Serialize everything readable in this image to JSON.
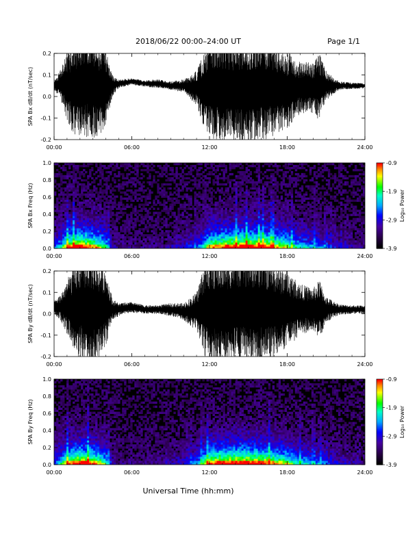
{
  "header": {
    "title": "2018/06/22  00:00–24:00 UT",
    "page": "Page 1/1"
  },
  "footer": {
    "xlabel": "Universal Time (hh:mm)"
  },
  "colorbar": {
    "ticks": [
      "-0.9",
      "-1.9",
      "-2.9",
      "-3.9"
    ],
    "label": "Log₁₀ Power",
    "range": [
      -3.9,
      -0.9
    ]
  },
  "chart_data": [
    {
      "type": "line",
      "name": "bx",
      "ylabel": "SPA Bx dB/dt (nT/sec)",
      "xlim": [
        0,
        24
      ],
      "ylim": [
        -0.2,
        0.2
      ],
      "xticks": [
        "00:00",
        "06:00",
        "12:00",
        "18:00",
        "24:00"
      ],
      "yticks": [
        "0.2",
        "0.1",
        "0.0",
        "-0.1",
        "-0.2"
      ],
      "series": [
        {
          "x": [
            0,
            0.5,
            1,
            1.5,
            2,
            2.5,
            3,
            3.5,
            4,
            4.5,
            5,
            6,
            7,
            8,
            9,
            10,
            11,
            11.5,
            12,
            13,
            14,
            15,
            16,
            17,
            18,
            19,
            20,
            20.5,
            21,
            22,
            23,
            24
          ],
          "y": [
            0.05,
            0.06,
            0.05,
            0.04,
            0.05,
            0.06,
            0.05,
            0.04,
            0.05,
            0.05,
            0.06,
            0.07,
            0.06,
            0.06,
            0.05,
            0.05,
            0.04,
            0.03,
            0.04,
            0.04,
            0.03,
            0.03,
            0.04,
            0.04,
            0.03,
            0.04,
            0.04,
            0.04,
            0.05,
            0.05,
            0.05,
            0.05
          ],
          "amplitude": [
            0.02,
            0.07,
            0.16,
            0.22,
            0.25,
            0.26,
            0.25,
            0.22,
            0.18,
            0.05,
            0.02,
            0.015,
            0.015,
            0.02,
            0.02,
            0.03,
            0.08,
            0.16,
            0.24,
            0.25,
            0.25,
            0.26,
            0.25,
            0.22,
            0.18,
            0.12,
            0.12,
            0.16,
            0.07,
            0.02,
            0.015,
            0.012
          ]
        }
      ]
    },
    {
      "type": "heatmap",
      "name": "bx-freq",
      "ylabel": "SPA Bx Freq (Hz)",
      "xlim": [
        0,
        24
      ],
      "ylim": [
        0.0,
        1.0
      ],
      "xticks": [
        "00:00",
        "06:00",
        "12:00",
        "18:00",
        "24:00"
      ],
      "yticks": [
        "1.0",
        "0.8",
        "0.6",
        "0.4",
        "0.2",
        "0.0"
      ],
      "activity": [
        0.3,
        0.5,
        0.8,
        0.95,
        1,
        0.95,
        0.85,
        0.75,
        0.6,
        0.15,
        0.1,
        0.08,
        0.08,
        0.1,
        0.15,
        0.2,
        0.3,
        0.5,
        0.8,
        0.9,
        0.95,
        1,
        0.95,
        0.85,
        0.7,
        0.5,
        0.4,
        0.4,
        0.3,
        0.2,
        0.15,
        0.1
      ],
      "activity_x": [
        0,
        0.5,
        1,
        1.5,
        2,
        2.5,
        3,
        3.5,
        4,
        4.5,
        5,
        6,
        7,
        8,
        9,
        10,
        11,
        11.5,
        12,
        13,
        14,
        15,
        16,
        17,
        18,
        19,
        20,
        20.5,
        21,
        22,
        23,
        24
      ]
    },
    {
      "type": "line",
      "name": "by",
      "ylabel": "SPA By dB/dt (nT/sec)",
      "xlim": [
        0,
        24
      ],
      "ylim": [
        -0.2,
        0.2
      ],
      "xticks": [
        "00:00",
        "06:00",
        "12:00",
        "18:00",
        "24:00"
      ],
      "yticks": [
        "0.2",
        "0.1",
        "0.0",
        "-0.1",
        "-0.2"
      ],
      "series": [
        {
          "x": [
            0,
            0.5,
            1,
            1.5,
            2,
            2.5,
            3,
            3.5,
            4,
            4.5,
            5,
            6,
            7,
            8,
            9,
            10,
            11,
            11.5,
            12,
            13,
            14,
            15,
            16,
            17,
            18,
            19,
            20,
            20.5,
            21,
            22,
            23,
            24
          ],
          "y": [
            0.03,
            0.03,
            0.03,
            0.02,
            0.03,
            0.03,
            0.02,
            0.02,
            0.03,
            0.02,
            0.02,
            0.03,
            0.02,
            0.02,
            0.02,
            0.01,
            0.01,
            0.02,
            0.02,
            0.02,
            0.03,
            0.03,
            0.03,
            0.02,
            0.02,
            0.02,
            0.02,
            0.02,
            0.02,
            0.02,
            0.02,
            0.02
          ],
          "amplitude": [
            0.03,
            0.06,
            0.13,
            0.2,
            0.24,
            0.26,
            0.25,
            0.22,
            0.18,
            0.05,
            0.03,
            0.025,
            0.02,
            0.02,
            0.03,
            0.04,
            0.09,
            0.2,
            0.26,
            0.25,
            0.26,
            0.26,
            0.26,
            0.22,
            0.18,
            0.12,
            0.1,
            0.14,
            0.06,
            0.025,
            0.02,
            0.02
          ]
        }
      ]
    },
    {
      "type": "heatmap",
      "name": "by-freq",
      "ylabel": "SPA By Freq (Hz)",
      "xlim": [
        0,
        24
      ],
      "ylim": [
        0.0,
        1.0
      ],
      "xticks": [
        "00:00",
        "06:00",
        "12:00",
        "18:00",
        "24:00"
      ],
      "yticks": [
        "1.0",
        "0.8",
        "0.6",
        "0.4",
        "0.2",
        "0.0"
      ],
      "activity": [
        0.3,
        0.5,
        0.8,
        0.95,
        1,
        0.95,
        0.85,
        0.75,
        0.6,
        0.15,
        0.1,
        0.08,
        0.08,
        0.1,
        0.15,
        0.2,
        0.35,
        0.6,
        0.9,
        0.95,
        1,
        1,
        0.95,
        0.85,
        0.7,
        0.5,
        0.4,
        0.4,
        0.3,
        0.2,
        0.15,
        0.1
      ],
      "activity_x": [
        0,
        0.5,
        1,
        1.5,
        2,
        2.5,
        3,
        3.5,
        4,
        4.5,
        5,
        6,
        7,
        8,
        9,
        10,
        11,
        11.5,
        12,
        13,
        14,
        15,
        16,
        17,
        18,
        19,
        20,
        20.5,
        21,
        22,
        23,
        24
      ]
    }
  ]
}
